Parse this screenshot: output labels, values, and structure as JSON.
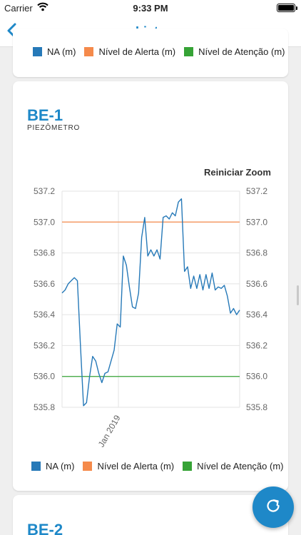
{
  "status_bar": {
    "carrier": "Carrier",
    "time": "9:33 PM"
  },
  "nav": {
    "title": "Lista"
  },
  "legend_items": [
    {
      "label": "NA (m)",
      "color": "#2679b8"
    },
    {
      "label": "Nível de Alerta (m)",
      "color": "#f58a4b"
    },
    {
      "label": "Nível de Atenção (m)",
      "color": "#36a336"
    }
  ],
  "cards": [
    {
      "title": "BE-1",
      "subtitle": "PIEZÔMETRO",
      "reset_zoom_label": "Reiniciar Zoom"
    },
    {
      "title": "BE-2"
    }
  ],
  "chart_data": {
    "type": "line",
    "ylim": [
      535.8,
      537.2
    ],
    "y_ticks": [
      "535.8",
      "536.0",
      "536.2",
      "536.4",
      "536.6",
      "536.8",
      "537.0",
      "537.2"
    ],
    "x_tick_label": "Jan 2019",
    "thresholds": [
      {
        "name": "Nível de Alerta (m)",
        "value": 537.0,
        "color": "#f58a4b"
      },
      {
        "name": "Nível de Atenção (m)",
        "value": 536.0,
        "color": "#36a336"
      }
    ],
    "series": [
      {
        "name": "NA (m)",
        "color": "#2679b8",
        "values": [
          536.54,
          536.56,
          536.6,
          536.62,
          536.64,
          536.62,
          536.2,
          535.81,
          535.83,
          536.0,
          536.13,
          536.1,
          536.02,
          535.96,
          536.02,
          536.03,
          536.1,
          536.17,
          536.34,
          536.32,
          536.78,
          536.72,
          536.58,
          536.45,
          536.44,
          536.54,
          536.9,
          537.03,
          536.78,
          536.82,
          536.78,
          536.82,
          536.76,
          537.03,
          537.04,
          537.02,
          537.06,
          537.04,
          537.13,
          537.15,
          536.68,
          536.71,
          536.57,
          536.65,
          536.57,
          536.66,
          536.56,
          536.66,
          536.57,
          536.67,
          536.56,
          536.58,
          536.57,
          536.59,
          536.52,
          536.41,
          536.44,
          536.4,
          536.43
        ]
      }
    ]
  },
  "fab": {
    "icon": "refresh-icon"
  }
}
